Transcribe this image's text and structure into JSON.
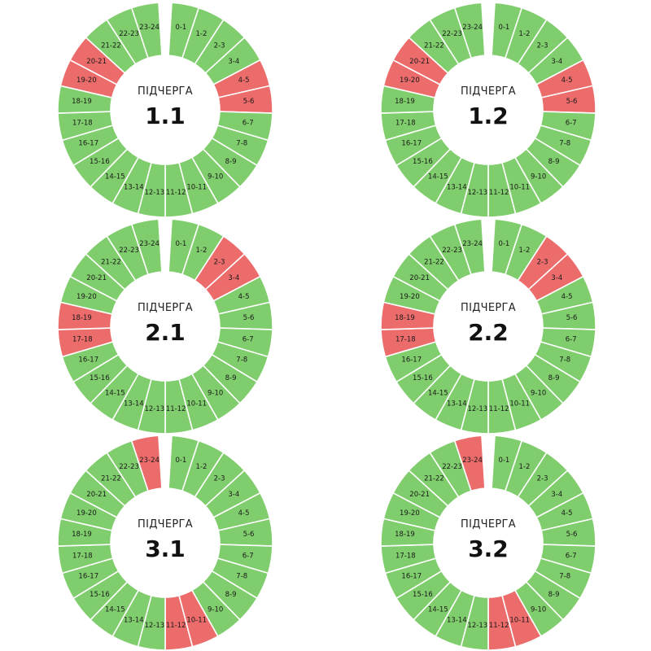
{
  "colors": {
    "on": "#7fcd6c",
    "off": "#ec6b6b",
    "separator": "#ffffff",
    "background": "#ffffff"
  },
  "hour_labels": [
    "0-1",
    "1-2",
    "2-3",
    "3-4",
    "4-5",
    "5-6",
    "6-7",
    "7-8",
    "8-9",
    "9-10",
    "10-11",
    "11-12",
    "12-13",
    "13-14",
    "14-15",
    "15-16",
    "16-17",
    "17-18",
    "18-19",
    "19-20",
    "20-21",
    "21-22",
    "22-23",
    "23-24"
  ],
  "queues": [
    {
      "caption": "ПІДЧЕРГА",
      "number": "1.1",
      "off_hours": [
        4,
        5,
        19,
        20
      ]
    },
    {
      "caption": "ПІДЧЕРГА",
      "number": "1.2",
      "off_hours": [
        4,
        5,
        19,
        20
      ]
    },
    {
      "caption": "ПІДЧЕРГА",
      "number": "2.1",
      "off_hours": [
        2,
        3,
        17,
        18
      ]
    },
    {
      "caption": "ПІДЧЕРГА",
      "number": "2.2",
      "off_hours": [
        2,
        3,
        17,
        18
      ]
    },
    {
      "caption": "ПІДЧЕРГА",
      "number": "3.1",
      "off_hours": [
        10,
        11,
        23
      ]
    },
    {
      "caption": "ПІДЧЕРГА",
      "number": "3.2",
      "off_hours": [
        10,
        11,
        23
      ]
    }
  ]
}
